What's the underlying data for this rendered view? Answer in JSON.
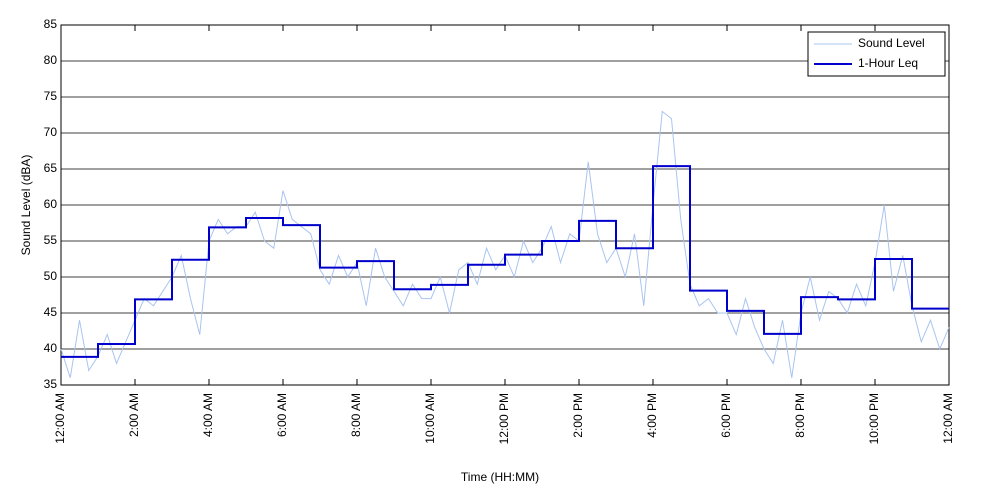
{
  "chart_data": {
    "type": "line",
    "xlabel": "Time (HH:MM)",
    "ylabel": "Sound Level (dBA)",
    "xlim": [
      0,
      24
    ],
    "ylim": [
      35,
      85
    ],
    "yticks": [
      35,
      40,
      45,
      50,
      55,
      60,
      65,
      70,
      75,
      80,
      85
    ],
    "xticks": [
      {
        "value": 0,
        "label": "12:00 AM"
      },
      {
        "value": 2,
        "label": "2:00 AM"
      },
      {
        "value": 4,
        "label": "4:00 AM"
      },
      {
        "value": 6,
        "label": "6:00 AM"
      },
      {
        "value": 8,
        "label": "8:00 AM"
      },
      {
        "value": 10,
        "label": "10:00 AM"
      },
      {
        "value": 12,
        "label": "12:00 PM"
      },
      {
        "value": 14,
        "label": "2:00 PM"
      },
      {
        "value": 16,
        "label": "4:00 PM"
      },
      {
        "value": 18,
        "label": "6:00 PM"
      },
      {
        "value": 20,
        "label": "8:00 PM"
      },
      {
        "value": 22,
        "label": "10:00 PM"
      },
      {
        "value": 24,
        "label": "12:00 AM"
      }
    ],
    "grid": true,
    "legend": "upper right",
    "series": [
      {
        "name": "Sound Level",
        "color": "#a9c4f0",
        "step": false,
        "x": [
          0,
          0.25,
          0.5,
          0.75,
          1,
          1.25,
          1.5,
          1.75,
          2,
          2.25,
          2.5,
          2.75,
          3,
          3.25,
          3.5,
          3.75,
          4,
          4.25,
          4.5,
          4.75,
          5,
          5.25,
          5.5,
          5.75,
          6,
          6.25,
          6.5,
          6.75,
          7,
          7.25,
          7.5,
          7.75,
          8,
          8.25,
          8.5,
          8.75,
          9,
          9.25,
          9.5,
          9.75,
          10,
          10.25,
          10.5,
          10.75,
          11,
          11.25,
          11.5,
          11.75,
          12,
          12.25,
          12.5,
          12.75,
          13,
          13.25,
          13.5,
          13.75,
          14,
          14.25,
          14.5,
          14.75,
          15,
          15.25,
          15.5,
          15.75,
          16,
          16.25,
          16.5,
          16.75,
          17,
          17.25,
          17.5,
          17.75,
          18,
          18.25,
          18.5,
          18.75,
          19,
          19.25,
          19.5,
          19.75,
          20,
          20.25,
          20.5,
          20.75,
          21,
          21.25,
          21.5,
          21.75,
          22,
          22.25,
          22.5,
          22.75,
          23,
          23.25,
          23.5,
          23.75,
          24
        ],
        "values": [
          40,
          36,
          44,
          37,
          39,
          42,
          38,
          41,
          44,
          47,
          46,
          48,
          50,
          53,
          47,
          42,
          55,
          58,
          56,
          57,
          57,
          59,
          55,
          54,
          62,
          58,
          57,
          56,
          51,
          49,
          53,
          50,
          52,
          46,
          54,
          50,
          48,
          46,
          49,
          47,
          47,
          50,
          45,
          51,
          52,
          49,
          54,
          51,
          53,
          50,
          55,
          52,
          54,
          57,
          52,
          56,
          55,
          66,
          56,
          52,
          54,
          50,
          56,
          46,
          60,
          73,
          72,
          58,
          49,
          46,
          47,
          45,
          45,
          42,
          47,
          43,
          40,
          38,
          44,
          36,
          45,
          50,
          44,
          48,
          47,
          45,
          49,
          46,
          52,
          60,
          48,
          53,
          46,
          41,
          44,
          40,
          43
        ]
      },
      {
        "name": "1-Hour Leq",
        "color": "#0000cc",
        "step": true,
        "x": [
          0,
          1,
          2,
          3,
          4,
          5,
          6,
          7,
          8,
          9,
          10,
          11,
          12,
          13,
          14,
          15,
          16,
          17,
          18,
          19,
          20,
          21,
          22,
          23
        ],
        "values": [
          38.9,
          40.7,
          46.9,
          52.4,
          56.9,
          58.2,
          57.2,
          51.3,
          52.2,
          48.3,
          48.9,
          51.7,
          53.1,
          55,
          57.8,
          54,
          65.4,
          48.1,
          45.3,
          42.1,
          47.2,
          46.9,
          52.5,
          45.6
        ]
      }
    ]
  }
}
